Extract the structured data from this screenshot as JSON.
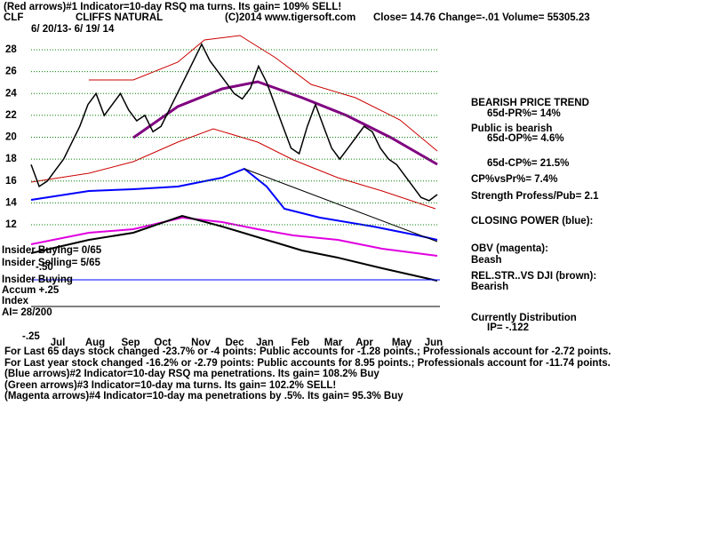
{
  "header": {
    "arrows_note": "(Red arrows)#1 Indicator=10-day RSQ ma turns. Its gain= 109% SELL!",
    "symbol": "CLF",
    "company": "CLIFFS NATURAL",
    "copyright": "(C)2014 www.tigersoft.com",
    "quote": "Close=  14.76  Change=-.01 Volume= 55305.23",
    "date_range": "6/ 20/13-  6/ 19/ 14"
  },
  "chart_data": {
    "type": "line",
    "months": [
      "Jul",
      "Aug",
      "Sep",
      "Oct",
      "Nov",
      "Dec",
      "Jan",
      "Feb",
      "Mar",
      "Apr",
      "May",
      "Jun"
    ],
    "series": [
      {
        "color": "#000000",
        "values": [
          17.5,
          15.5,
          16,
          17,
          18,
          19.5,
          21,
          23,
          24,
          22,
          23,
          24,
          22.5,
          21.5,
          22,
          20.5,
          21,
          22.5,
          24,
          25.5,
          27,
          28.5,
          27,
          26,
          25,
          24,
          23.5,
          24.5,
          26.5,
          25,
          23,
          21,
          19,
          18.5,
          21,
          23,
          21,
          19,
          18,
          19,
          20,
          21,
          20.5,
          19,
          18,
          17.5,
          16.5,
          15.5,
          14.5,
          14.2,
          14.76
        ]
      }
    ],
    "ylim": [
      12,
      28
    ],
    "yticks": [
      12,
      14,
      16,
      18,
      20,
      22,
      24,
      26,
      28
    ],
    "grid": true
  },
  "right_panel": {
    "trend": "BEARISH PRICE TREND",
    "pr": "65d-PR%= 14%",
    "public": "Public is bearish",
    "op": "65d-OP%= 4.6%",
    "cp": "65d-CP%= 21.5%",
    "cpvspr": "CP%vsPr%=  7.4%",
    "strength": "Strength Profess/Pub= 2.1",
    "closing_power": "CLOSING POWER (blue):",
    "obv": "OBV (magenta):",
    "obv_state": "Beash",
    "relstr": "REL.STR..VS DJI (brown):",
    "relstr_state": "Bearish",
    "distribution": "Currently Distribution",
    "ip": "IP= -.122"
  },
  "left_panel": {
    "insider_buying": "Insider Buying= 0/65",
    "insider_selling": "Insider Selling= 5/65",
    "minus50": "-.50",
    "insider_buying2": "Insider Buying",
    "accum": "Accum  +.25",
    "index": "Index",
    "ai": "AI= 28/200",
    "minus25": "-.25"
  },
  "footer": [
    "For Last 65 days stock changed -23.7% or -4 points:  Public accounts for -1.28 points.;  Professionals account for -2.72 points.",
    "For Last year stock changed -16.2% or -2.79 points:  Public accounts for  8.95 points.;  Professionals account for -11.74 points.",
    "(Blue arrows)#2 Indicator=10-day RSQ ma penetrations. Its gain= 108.2% Buy",
    "(Green arrows)#3 Indicator=10-day ma turns. Its gain= 102.2% SELL!",
    "(Magenta arrows)#4 Indicator=10-day ma penetrations by .5%. Its gain= 95.3% Buy"
  ]
}
